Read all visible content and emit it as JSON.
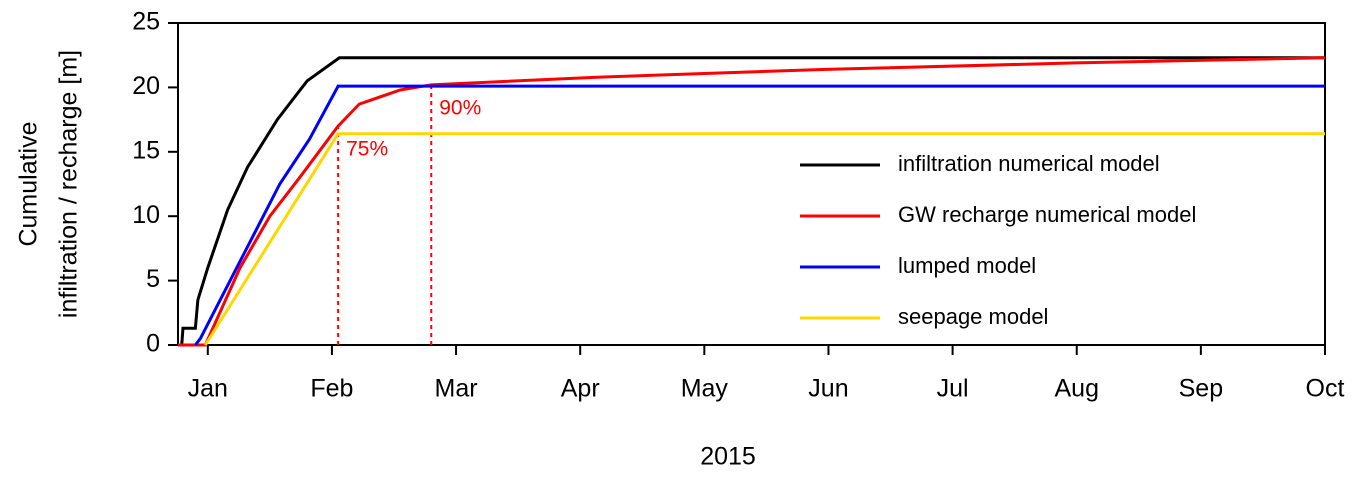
{
  "chart_data": {
    "type": "line",
    "xlabel": "2015",
    "ylabel": [
      "Cumulative",
      "infiltration / recharge [m]"
    ],
    "xlim": [
      -0.24,
      9
    ],
    "ylim": [
      0,
      25
    ],
    "xticks": [
      {
        "value": 0,
        "label": "Jan"
      },
      {
        "value": 1,
        "label": "Feb"
      },
      {
        "value": 2,
        "label": "Mar"
      },
      {
        "value": 3,
        "label": "Apr"
      },
      {
        "value": 4,
        "label": "May"
      },
      {
        "value": 5,
        "label": "Jun"
      },
      {
        "value": 6,
        "label": "Jul"
      },
      {
        "value": 7,
        "label": "Aug"
      },
      {
        "value": 8,
        "label": "Sep"
      },
      {
        "value": 9,
        "label": "Oct"
      }
    ],
    "yticks": [
      0,
      5,
      10,
      15,
      20,
      25
    ],
    "legend": "center-right",
    "series": [
      {
        "name": "infiltration numerical model",
        "color": "#000000",
        "x": [
          -0.21,
          -0.2,
          -0.1,
          -0.08,
          0.0,
          0.16,
          0.32,
          0.56,
          0.8,
          1.06,
          9
        ],
        "values": [
          0,
          1.3,
          1.3,
          3.5,
          6,
          10.5,
          13.8,
          17.5,
          20.5,
          22.3,
          22.3
        ]
      },
      {
        "name": "GW recharge numerical model",
        "color": "#ff0000",
        "x": [
          -0.24,
          -0.02,
          0.26,
          0.5,
          0.74,
          1.05,
          1.22,
          1.55,
          1.8,
          3.16,
          4.98,
          6.99,
          9
        ],
        "values": [
          0,
          0,
          6,
          10,
          13,
          17,
          18.7,
          19.8,
          20.2,
          20.8,
          21.4,
          21.9,
          22.3
        ]
      },
      {
        "name": "lumped model",
        "color": "#0000ff",
        "x": [
          -0.1,
          -0.06,
          0.18,
          0.34,
          0.58,
          0.82,
          1.05,
          9
        ],
        "values": [
          0,
          0.5,
          5,
          8,
          12.5,
          16,
          20.1,
          20.1
        ]
      },
      {
        "name": "seepage model",
        "color": "#ffd700",
        "x": [
          -0.02,
          1.05,
          9
        ],
        "values": [
          0,
          16.4,
          16.4
        ]
      }
    ],
    "annotations": [
      {
        "text": "75%",
        "x": 1.05,
        "y": 17,
        "color": "#ff0000"
      },
      {
        "text": "90%",
        "x": 1.8,
        "y": 20.2,
        "color": "#ff0000"
      }
    ]
  }
}
